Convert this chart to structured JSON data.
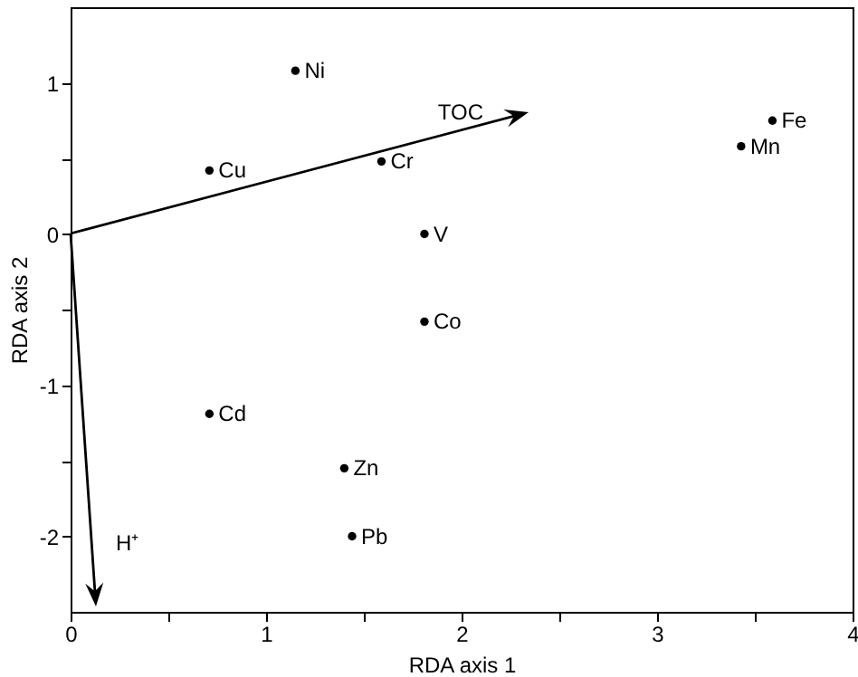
{
  "chart_data": {
    "type": "scatter",
    "xlabel": "RDA axis 1",
    "ylabel": "RDA axis 2",
    "xlim": [
      0,
      4
    ],
    "ylim": [
      -2.5,
      1.5
    ],
    "xticks": [
      0,
      {
        "value": 0.5,
        "label": null
      },
      1,
      {
        "value": 1.5,
        "label": null
      },
      2,
      {
        "value": 2.5,
        "label": null
      },
      3,
      {
        "value": 3.5,
        "label": null
      },
      4
    ],
    "yticks": [
      -2,
      {
        "value": -1.5,
        "label": null
      },
      -1,
      {
        "value": -0.5,
        "label": null
      },
      0,
      {
        "value": 0.5,
        "label": null
      },
      1
    ],
    "grid": false,
    "marker": "circle",
    "series": [
      {
        "type": "scatter",
        "color": "#000000",
        "x": [
          1.15,
          0.71,
          1.59,
          1.81,
          1.81,
          3.59,
          3.43,
          0.71,
          1.4,
          1.44
        ],
        "values": [
          1.08,
          0.42,
          0.48,
          0,
          -0.58,
          0.75,
          0.58,
          -1.19,
          -1.55,
          -2.0
        ]
      }
    ],
    "annotations": [
      {
        "text": "Ni",
        "x": 1.15,
        "y": 1.08
      },
      {
        "text": "Cu",
        "x": 0.71,
        "y": 0.42
      },
      {
        "text": "Cr",
        "x": 1.59,
        "y": 0.48
      },
      {
        "text": "V",
        "x": 1.81,
        "y": 0
      },
      {
        "text": "Co",
        "x": 1.81,
        "y": -0.58
      },
      {
        "text": "Fe",
        "x": 3.59,
        "y": 0.75
      },
      {
        "text": "Mn",
        "x": 3.43,
        "y": 0.58
      },
      {
        "text": "Cd",
        "x": 0.71,
        "y": -1.19
      },
      {
        "text": "Zn",
        "x": 1.4,
        "y": -1.55
      },
      {
        "text": "Pb",
        "x": 1.44,
        "y": -2.0
      },
      "TOC",
      "H⁺"
    ]
  }
}
